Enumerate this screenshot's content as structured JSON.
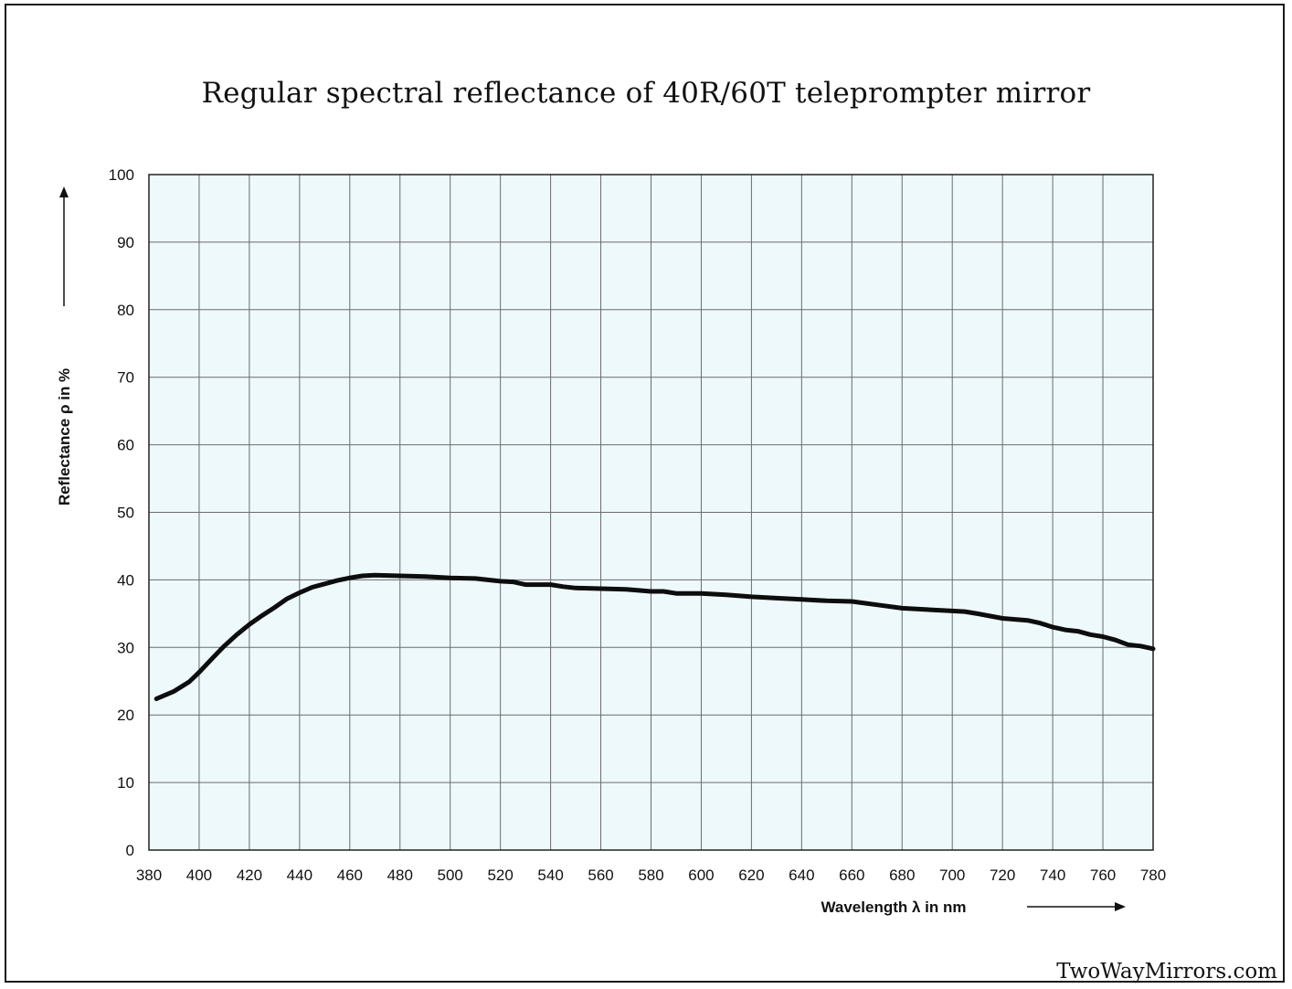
{
  "title": "Regular spectral reflectance of 40R/60T teleprompter mirror",
  "watermark": "TwoWayMirrors.com",
  "colors": {
    "plot_background": "#eef9fc",
    "grid": "#6b6b6b",
    "curve": "#0d0d0d"
  },
  "chart_data": {
    "type": "line",
    "xlabel": "Wavelength λ in nm",
    "ylabel": "Reflectance ρ in %",
    "xlim": [
      380,
      780
    ],
    "ylim": [
      0,
      100
    ],
    "x_ticks": [
      380,
      400,
      420,
      440,
      460,
      480,
      500,
      520,
      540,
      560,
      580,
      600,
      620,
      640,
      660,
      680,
      700,
      720,
      740,
      760,
      780
    ],
    "y_ticks": [
      0,
      10,
      20,
      30,
      40,
      50,
      60,
      70,
      80,
      90,
      100
    ],
    "grid": true,
    "legend": "none",
    "series": [
      {
        "x": [
          383,
          390,
          396,
          400,
          405,
          410,
          415,
          420,
          425,
          430,
          435,
          440,
          445,
          450,
          455,
          460,
          465,
          470,
          480,
          490,
          500,
          510,
          520,
          525,
          530,
          540,
          545,
          550,
          560,
          570,
          580,
          585,
          590,
          600,
          610,
          620,
          630,
          640,
          650,
          660,
          670,
          680,
          690,
          700,
          705,
          710,
          720,
          730,
          735,
          740,
          745,
          750,
          755,
          760,
          765,
          770,
          775,
          780
        ],
        "y": [
          22.4,
          23.5,
          24.9,
          26.3,
          28.3,
          30.2,
          31.9,
          33.4,
          34.7,
          35.9,
          37.2,
          38.1,
          38.9,
          39.4,
          39.9,
          40.3,
          40.6,
          40.7,
          40.6,
          40.5,
          40.3,
          40.2,
          39.8,
          39.7,
          39.3,
          39.3,
          39.0,
          38.8,
          38.7,
          38.6,
          38.3,
          38.3,
          38.0,
          38.0,
          37.8,
          37.5,
          37.3,
          37.1,
          36.9,
          36.8,
          36.3,
          35.8,
          35.6,
          35.4,
          35.3,
          35.0,
          34.3,
          34.0,
          33.6,
          33.0,
          32.6,
          32.4,
          31.9,
          31.6,
          31.1,
          30.4,
          30.2,
          29.8
        ]
      }
    ]
  }
}
